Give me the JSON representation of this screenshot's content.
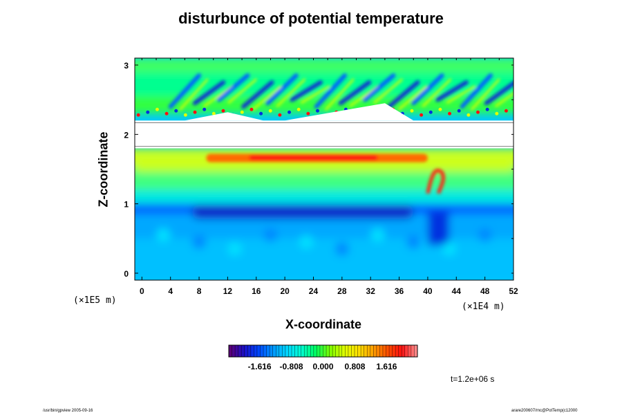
{
  "chart_data": {
    "type": "heatmap",
    "title": "disturbunce of potential temperature",
    "xlabel": "X-coordinate",
    "ylabel": "Z-coordinate",
    "x_unit_left": "(×1E5 m)",
    "x_unit_right": "(×1E4 m)",
    "xlim": [
      -1,
      52
    ],
    "ylim": [
      -0.1,
      3.1
    ],
    "x_ticks": [
      0,
      4,
      8,
      12,
      16,
      20,
      24,
      28,
      32,
      36,
      40,
      44,
      48,
      52
    ],
    "y_ticks": [
      0,
      1,
      2,
      3
    ],
    "colorbar": {
      "range": [
        -2.4,
        2.4
      ],
      "ticks": [
        -1.616,
        -0.808,
        0.0,
        0.808,
        1.616
      ],
      "tick_labels": [
        "-1.616",
        "-0.808",
        "0.000",
        "0.808",
        "1.616"
      ],
      "colors": [
        "#5a007a",
        "#1a10c8",
        "#0048ff",
        "#0098ff",
        "#00d8ff",
        "#00ffd0",
        "#00ff60",
        "#80ff00",
        "#e0ff00",
        "#ffe000",
        "#ffa000",
        "#ff5000",
        "#ff1010",
        "#ff8888"
      ]
    },
    "undefined_band_z": [
      1.8,
      2.2
    ]
  },
  "annotations": {
    "time": "t=1.2e+06 s",
    "footer_left": "/usr/bin/gpview 2005-09-16",
    "footer_right": "arare200607/rnc@PotTemp(c12000"
  }
}
